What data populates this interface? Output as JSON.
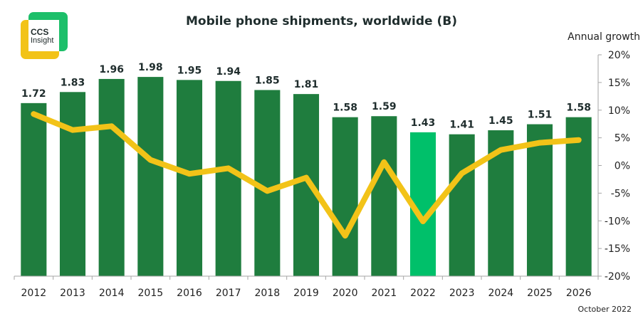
{
  "logo": {
    "line1": "CCS",
    "line2": "Insight"
  },
  "footnote": "October 2022",
  "colors": {
    "bar": "#1f7d3e",
    "bar_highlight": "#00c06a",
    "line": "#f2c318",
    "text": "#1f2d2d",
    "axis": "#a6a6a6"
  },
  "chart_data": {
    "type": "bar+line",
    "title": "Mobile phone shipments, worldwide (B)",
    "categories": [
      "2012",
      "2013",
      "2014",
      "2015",
      "2016",
      "2017",
      "2018",
      "2019",
      "2020",
      "2021",
      "2022",
      "2023",
      "2024",
      "2025",
      "2026"
    ],
    "series": [
      {
        "name": "Shipments (B)",
        "type": "bar",
        "axis": "left",
        "values": [
          1.72,
          1.83,
          1.96,
          1.98,
          1.95,
          1.94,
          1.85,
          1.81,
          1.58,
          1.59,
          1.43,
          1.41,
          1.45,
          1.51,
          1.58
        ],
        "highlight_category": "2022",
        "data_labels": [
          "1.72",
          "1.83",
          "1.96",
          "1.98",
          "1.95",
          "1.94",
          "1.85",
          "1.81",
          "1.58",
          "1.59",
          "1.43",
          "1.41",
          "1.45",
          "1.51",
          "1.58"
        ]
      },
      {
        "name": "Annual growth",
        "type": "line",
        "axis": "right",
        "values": [
          9.3,
          6.4,
          7.1,
          1.0,
          -1.5,
          -0.5,
          -4.6,
          -2.2,
          -12.7,
          0.6,
          -10.1,
          -1.4,
          2.8,
          4.1,
          4.6
        ]
      }
    ],
    "left_axis": {
      "visible": false,
      "ylim": [
        0,
        2.2
      ]
    },
    "right_axis": {
      "label": "Annual growth",
      "ylim": [
        -20,
        20
      ],
      "ticks": [
        20,
        15,
        10,
        5,
        0,
        -5,
        -10,
        -15,
        -20
      ],
      "tick_labels": [
        "20%",
        "15%",
        "10%",
        "5%",
        "0%",
        "-5%",
        "-10%",
        "-15%",
        "-20%"
      ]
    },
    "xlabel": "",
    "grid": false,
    "legend": "none"
  }
}
